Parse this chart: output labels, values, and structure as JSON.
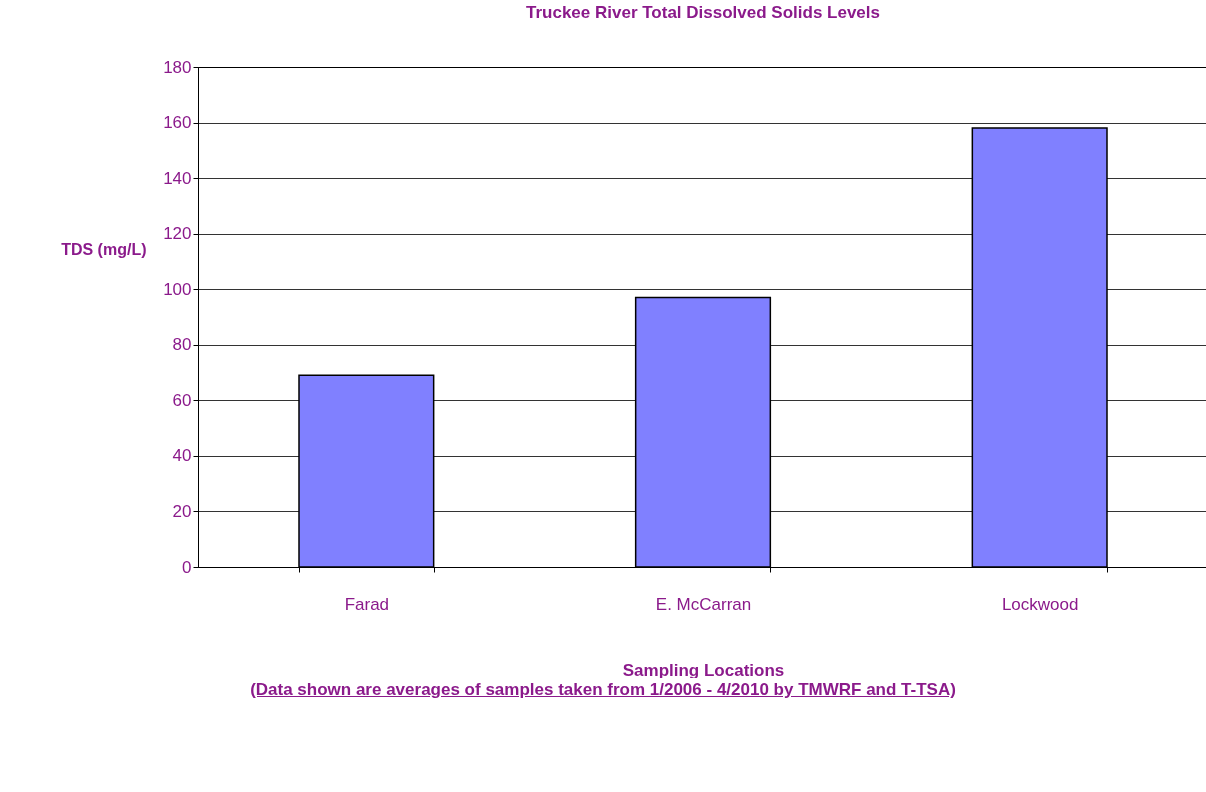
{
  "chart_data": {
    "type": "bar",
    "title": "Truckee River Total Dissolved Solids Levels",
    "xlabel": "Sampling Locations",
    "ylabel": "TDS (mg/L)",
    "annotations": [
      "(Data shown are averages of samples taken from 1/2006 - 4/2010 by TMWRF and T-TSA)"
    ],
    "categories": [
      "Farad",
      "E. McCarran",
      "Lockwood"
    ],
    "values": [
      69,
      97,
      158
    ],
    "color": "#8080ff",
    "ylim": [
      0,
      180
    ],
    "yticks": [
      0,
      20,
      40,
      60,
      80,
      100,
      120,
      140,
      160,
      180
    ],
    "grid": "y"
  }
}
